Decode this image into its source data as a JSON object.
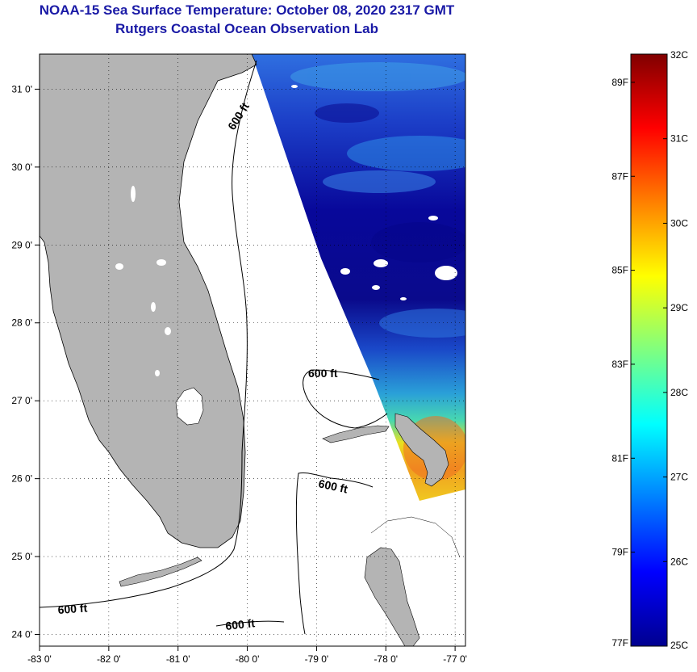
{
  "title": {
    "line1": "NOAA-15 Sea Surface Temperature:  October 08, 2020 2317 GMT",
    "line2": "Rutgers Coastal Ocean Observation Lab"
  },
  "map": {
    "x_ticks": [
      "-83 0'",
      "-82 0'",
      "-81 0'",
      "-80 0'",
      "-79 0'",
      "-78 0'",
      "-77 0'"
    ],
    "y_ticks": [
      "31 0'",
      "30 0'",
      "29 0'",
      "28 0'",
      "27 0'",
      "26 0'",
      "25 0'",
      "24 0'"
    ],
    "lon_range": [
      -83,
      -76.85
    ],
    "lat_range": [
      23.85,
      31.45
    ],
    "contour_labels": [
      "600 ft",
      "600 ft",
      "600 ft",
      "600 ft",
      "600 ft"
    ],
    "land_color": "#b4b4b4"
  },
  "colorbar": {
    "celsius_labels": [
      "32C",
      "31C",
      "30C",
      "29C",
      "28C",
      "27C",
      "26C",
      "25C"
    ],
    "fahrenheit_labels": [
      "89F",
      "87F",
      "85F",
      "83F",
      "81F",
      "79F",
      "77F"
    ],
    "min_c": 25,
    "max_c": 32
  }
}
